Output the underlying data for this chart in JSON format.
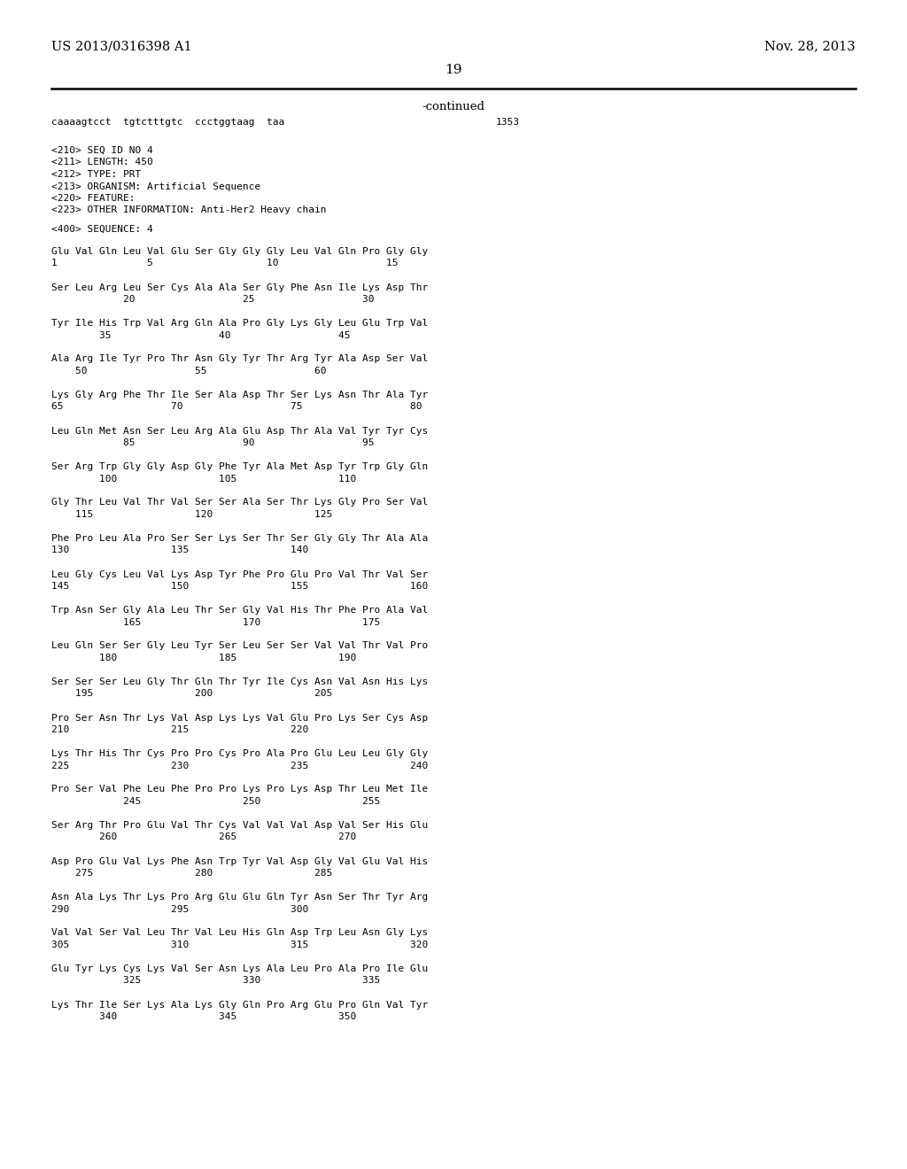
{
  "background_color": "#ffffff",
  "header_left": "US 2013/0316398 A1",
  "header_right": "Nov. 28, 2013",
  "page_number": "19",
  "continued_text": "-continued",
  "line1": "caaaagtcct  tgtctttgtc  ccctggtaag  taa",
  "line1_num": "1353",
  "metadata": [
    "<210> SEQ ID NO 4",
    "<211> LENGTH: 450",
    "<212> TYPE: PRT",
    "<213> ORGANISM: Artificial Sequence",
    "<220> FEATURE:",
    "<223> OTHER INFORMATION: Anti-Her2 Heavy chain"
  ],
  "sequence_header": "<400> SEQUENCE: 4",
  "sequence_lines": [
    [
      "Glu Val Gln Leu Val Glu Ser Gly Gly Gly Leu Val Gln Pro Gly Gly",
      "1               5                   10                  15"
    ],
    [
      "Ser Leu Arg Leu Ser Cys Ala Ala Ser Gly Phe Asn Ile Lys Asp Thr",
      "            20                  25                  30"
    ],
    [
      "Tyr Ile His Trp Val Arg Gln Ala Pro Gly Lys Gly Leu Glu Trp Val",
      "        35                  40                  45"
    ],
    [
      "Ala Arg Ile Tyr Pro Thr Asn Gly Tyr Thr Arg Tyr Ala Asp Ser Val",
      "    50                  55                  60"
    ],
    [
      "Lys Gly Arg Phe Thr Ile Ser Ala Asp Thr Ser Lys Asn Thr Ala Tyr",
      "65                  70                  75                  80"
    ],
    [
      "Leu Gln Met Asn Ser Leu Arg Ala Glu Asp Thr Ala Val Tyr Tyr Cys",
      "            85                  90                  95"
    ],
    [
      "Ser Arg Trp Gly Gly Asp Gly Phe Tyr Ala Met Asp Tyr Trp Gly Gln",
      "        100                 105                 110"
    ],
    [
      "Gly Thr Leu Val Thr Val Ser Ser Ala Ser Thr Lys Gly Pro Ser Val",
      "    115                 120                 125"
    ],
    [
      "Phe Pro Leu Ala Pro Ser Ser Lys Ser Thr Ser Gly Gly Thr Ala Ala",
      "130                 135                 140"
    ],
    [
      "Leu Gly Cys Leu Val Lys Asp Tyr Phe Pro Glu Pro Val Thr Val Ser",
      "145                 150                 155                 160"
    ],
    [
      "Trp Asn Ser Gly Ala Leu Thr Ser Gly Val His Thr Phe Pro Ala Val",
      "            165                 170                 175"
    ],
    [
      "Leu Gln Ser Ser Gly Leu Tyr Ser Leu Ser Ser Val Val Thr Val Pro",
      "        180                 185                 190"
    ],
    [
      "Ser Ser Ser Leu Gly Thr Gln Thr Tyr Ile Cys Asn Val Asn His Lys",
      "    195                 200                 205"
    ],
    [
      "Pro Ser Asn Thr Lys Val Asp Lys Lys Val Glu Pro Lys Ser Cys Asp",
      "210                 215                 220"
    ],
    [
      "Lys Thr His Thr Cys Pro Pro Cys Pro Ala Pro Glu Leu Leu Gly Gly",
      "225                 230                 235                 240"
    ],
    [
      "Pro Ser Val Phe Leu Phe Pro Pro Lys Pro Lys Asp Thr Leu Met Ile",
      "            245                 250                 255"
    ],
    [
      "Ser Arg Thr Pro Glu Val Thr Cys Val Val Val Asp Val Ser His Glu",
      "        260                 265                 270"
    ],
    [
      "Asp Pro Glu Val Lys Phe Asn Trp Tyr Val Asp Gly Val Glu Val His",
      "    275                 280                 285"
    ],
    [
      "Asn Ala Lys Thr Lys Pro Arg Glu Glu Gln Tyr Asn Ser Thr Tyr Arg",
      "290                 295                 300"
    ],
    [
      "Val Val Ser Val Leu Thr Val Leu His Gln Asp Trp Leu Asn Gly Lys",
      "305                 310                 315                 320"
    ],
    [
      "Glu Tyr Lys Cys Lys Val Ser Asn Lys Ala Leu Pro Ala Pro Ile Glu",
      "            325                 330                 335"
    ],
    [
      "Lys Thr Ile Ser Lys Ala Lys Gly Gln Pro Arg Glu Pro Gln Val Tyr",
      "        340                 345                 350"
    ]
  ]
}
